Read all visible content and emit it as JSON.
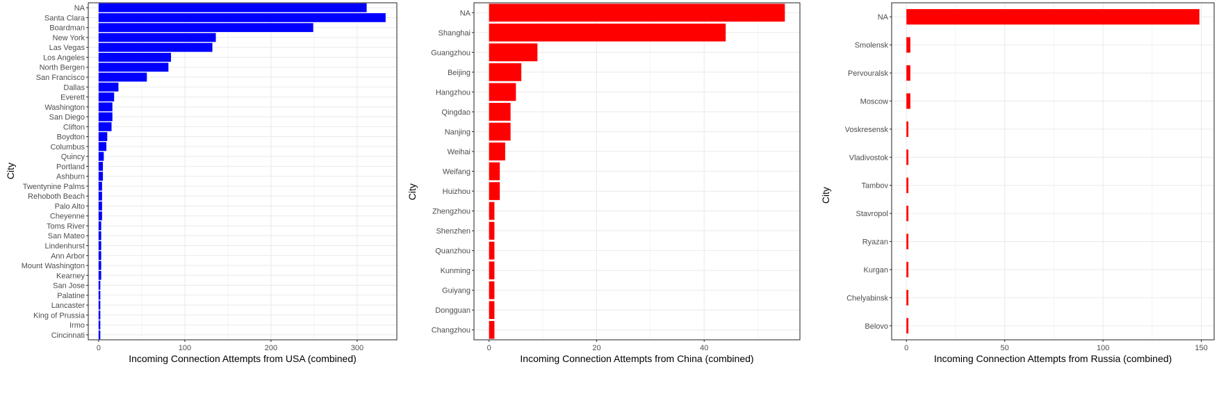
{
  "chart_data": [
    {
      "type": "bar",
      "orientation": "horizontal",
      "xlabel": "Incoming Connection Attempts from USA (combined)",
      "ylabel": "City",
      "color": "#0000ff",
      "xlim": [
        -12,
        346
      ],
      "xticks": [
        0,
        100,
        200,
        300
      ],
      "grid": true,
      "categories": [
        "NA",
        "Santa Clara",
        "Boardman",
        "New York",
        "Las Vegas",
        "Los Angeles",
        "North Bergen",
        "San Francisco",
        "Dallas",
        "Everett",
        "Washington",
        "San Diego",
        "Clifton",
        "Boydton",
        "Columbus",
        "Quincy",
        "Portland",
        "Ashburn",
        "Twentynine Palms",
        "Rehoboth Beach",
        "Palo Alto",
        "Cheyenne",
        "Toms River",
        "San Mateo",
        "Lindenhurst",
        "Ann Arbor",
        "Mount Washington",
        "Kearney",
        "San Jose",
        "Palatine",
        "Lancaster",
        "King of Prussia",
        "Irmo",
        "Cincinnati"
      ],
      "values": [
        311,
        333,
        249,
        136,
        132,
        84,
        81,
        56,
        23,
        18,
        16,
        16,
        15,
        10,
        9,
        6,
        5,
        5,
        4,
        4,
        4,
        4,
        3,
        3,
        3,
        3,
        3,
        3,
        2,
        2,
        2,
        2,
        2,
        2
      ]
    },
    {
      "type": "bar",
      "orientation": "horizontal",
      "xlabel": "Incoming Connection Attempts from China (combined)",
      "ylabel": "City",
      "color": "#ff0000",
      "xlim": [
        -2.8,
        57.8
      ],
      "xticks": [
        0,
        20,
        40
      ],
      "grid": true,
      "categories": [
        "NA",
        "Shanghai",
        "Guangzhou",
        "Beijing",
        "Hangzhou",
        "Qingdao",
        "Nanjing",
        "Weihai",
        "Weifang",
        "Huizhou",
        "Zhengzhou",
        "Shenzhen",
        "Quanzhou",
        "Kunming",
        "Guiyang",
        "Dongguan",
        "Changzhou"
      ],
      "values": [
        55,
        44,
        9,
        6,
        5,
        4,
        4,
        3,
        2,
        2,
        1,
        1,
        1,
        1,
        1,
        1,
        1
      ]
    },
    {
      "type": "bar",
      "orientation": "horizontal",
      "xlabel": "Incoming Connection Attempts from Russia (combined)",
      "ylabel": "City",
      "color": "#ff0000",
      "xlim": [
        -7.5,
        156.5
      ],
      "xticks": [
        0,
        50,
        100,
        150
      ],
      "grid": true,
      "categories": [
        "NA",
        "Smolensk",
        "Pervouralsk",
        "Moscow",
        "Voskresensk",
        "Vladivostok",
        "Tambov",
        "Stavropol",
        "Ryazan",
        "Kurgan",
        "Chelyabinsk",
        "Belovo"
      ],
      "values": [
        149,
        2,
        2,
        2,
        1,
        1,
        1,
        1,
        1,
        1,
        1,
        1
      ]
    }
  ]
}
